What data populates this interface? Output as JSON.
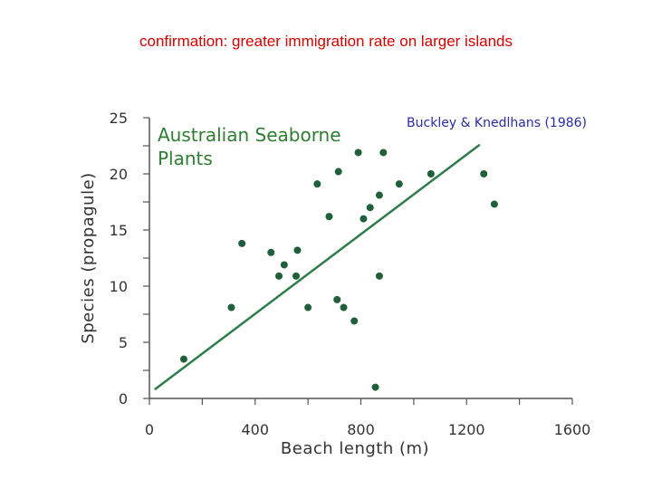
{
  "slide": {
    "title": "confirmation: greater immigration rate on larger islands"
  },
  "chart_data": {
    "type": "scatter",
    "title_lines": [
      "Australian Seaborne",
      "Plants"
    ],
    "source": "Buckley & Knedlhans (1986)",
    "xlabel": "Beach length (m)",
    "ylabel": "Species (propagule)",
    "xlim": [
      0,
      1600
    ],
    "ylim": [
      0,
      25
    ],
    "xticks": [
      0,
      400,
      800,
      1200,
      1600
    ],
    "yticks": [
      0,
      5,
      10,
      15,
      20,
      25
    ],
    "grid": false,
    "point_color": "#1f5f3a",
    "line_color": "#2e7d4a",
    "points": [
      {
        "x": 130,
        "y": 3.5
      },
      {
        "x": 310,
        "y": 8.1
      },
      {
        "x": 350,
        "y": 13.8
      },
      {
        "x": 460,
        "y": 13.0
      },
      {
        "x": 490,
        "y": 10.9
      },
      {
        "x": 510,
        "y": 11.9
      },
      {
        "x": 555,
        "y": 10.9
      },
      {
        "x": 560,
        "y": 13.2
      },
      {
        "x": 600,
        "y": 8.1
      },
      {
        "x": 635,
        "y": 19.1
      },
      {
        "x": 680,
        "y": 16.2
      },
      {
        "x": 710,
        "y": 8.8
      },
      {
        "x": 715,
        "y": 20.2
      },
      {
        "x": 735,
        "y": 8.1
      },
      {
        "x": 775,
        "y": 6.9
      },
      {
        "x": 790,
        "y": 21.9
      },
      {
        "x": 810,
        "y": 16.0
      },
      {
        "x": 835,
        "y": 17.0
      },
      {
        "x": 855,
        "y": 1.0
      },
      {
        "x": 870,
        "y": 18.1
      },
      {
        "x": 870,
        "y": 10.9
      },
      {
        "x": 885,
        "y": 21.9
      },
      {
        "x": 945,
        "y": 19.1
      },
      {
        "x": 1065,
        "y": 20.0
      },
      {
        "x": 1265,
        "y": 20.0
      },
      {
        "x": 1305,
        "y": 17.3
      }
    ],
    "trendline": [
      [
        20,
        0.8
      ],
      [
        1250,
        22.6
      ]
    ]
  }
}
